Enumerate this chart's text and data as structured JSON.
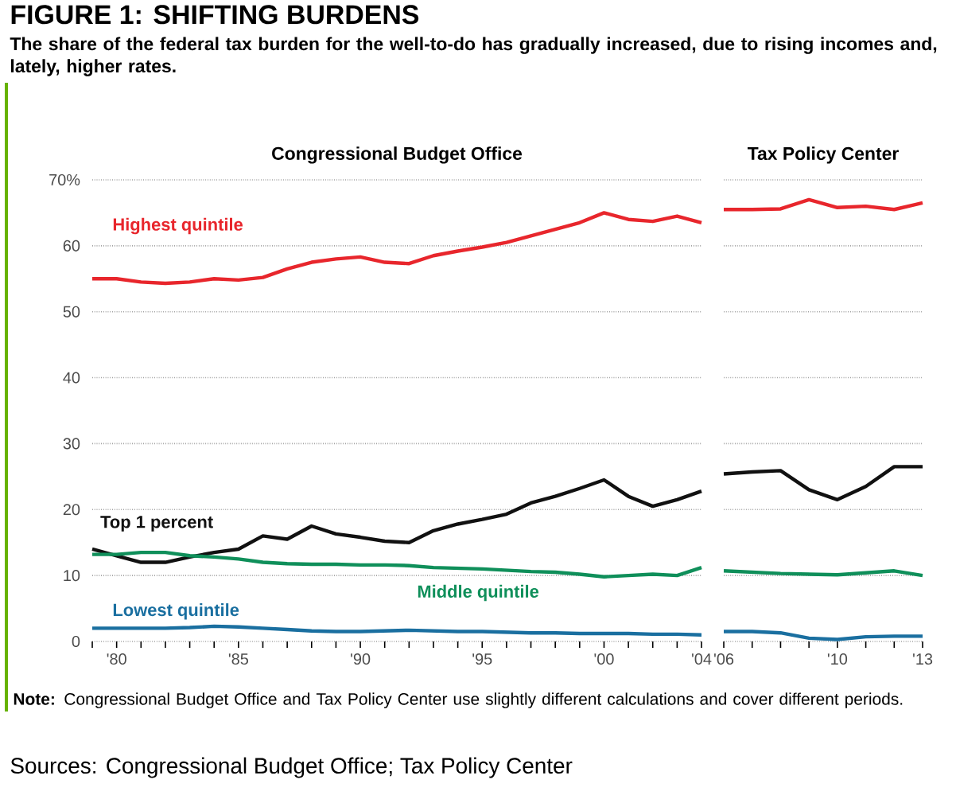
{
  "chart_data": [
    {
      "type": "line",
      "title": "FIGURE 1: SHIFTING BURDENS",
      "subtitle": "The share of the federal tax burden for the well-to-do has gradually increased, due to rising incomes and, lately, higher rates.",
      "annotations": [
        "Congressional Budget Office",
        "**Note:** Congressional Budget Office and Tax Policy Center use slightly different calculations and cover different periods.",
        "Sources: Congressional Budget Office; Tax Policy Center"
      ],
      "x": [
        1979,
        1980,
        1981,
        1982,
        1983,
        1984,
        1985,
        1986,
        1987,
        1988,
        1989,
        1990,
        1991,
        1992,
        1993,
        1994,
        1995,
        1996,
        1997,
        1998,
        1999,
        2000,
        2001,
        2002,
        2003,
        2004
      ],
      "series": [
        {
          "name": "Highest quintile",
          "color": "#e8262c",
          "values": [
            55,
            55,
            54.5,
            54.3,
            54.5,
            55,
            54.8,
            55.2,
            56.5,
            57.5,
            58,
            58.3,
            57.5,
            57.3,
            58.5,
            59.2,
            59.8,
            60.5,
            61.5,
            62.5,
            63.5,
            65,
            64,
            63.7,
            64.5,
            63.5
          ]
        },
        {
          "name": "Top 1 percent",
          "color": "#111111",
          "values": [
            14,
            13,
            12,
            12,
            12.8,
            13.5,
            14,
            16,
            15.5,
            17.5,
            16.3,
            15.8,
            15.2,
            15,
            16.8,
            17.8,
            18.5,
            19.3,
            21,
            22,
            23.2,
            24.5,
            22,
            20.5,
            21.5,
            22.8
          ]
        },
        {
          "name": "Middle quintile",
          "color": "#0f8f5a",
          "values": [
            13.2,
            13.2,
            13.5,
            13.5,
            13,
            12.8,
            12.5,
            12,
            11.8,
            11.7,
            11.7,
            11.6,
            11.6,
            11.5,
            11.2,
            11.1,
            11,
            10.8,
            10.6,
            10.5,
            10.2,
            9.8,
            10,
            10.2,
            10,
            11.2
          ]
        },
        {
          "name": "Lowest quintile",
          "color": "#1a6fa0",
          "values": [
            2,
            2,
            2,
            2,
            2.1,
            2.3,
            2.2,
            2,
            1.8,
            1.6,
            1.5,
            1.5,
            1.6,
            1.7,
            1.6,
            1.5,
            1.5,
            1.4,
            1.3,
            1.3,
            1.2,
            1.2,
            1.2,
            1.1,
            1.1,
            1
          ]
        }
      ],
      "xlim": [
        1979,
        2004
      ],
      "ylim": [
        0,
        70
      ],
      "xticks": [
        {
          "value": 1979,
          "label": null
        },
        {
          "value": 1980,
          "label": "'80"
        },
        {
          "value": 1981,
          "label": null
        },
        {
          "value": 1982,
          "label": null
        },
        {
          "value": 1983,
          "label": null
        },
        {
          "value": 1984,
          "label": null
        },
        {
          "value": 1985,
          "label": "'85"
        },
        {
          "value": 1986,
          "label": null
        },
        {
          "value": 1987,
          "label": null
        },
        {
          "value": 1988,
          "label": null
        },
        {
          "value": 1989,
          "label": null
        },
        {
          "value": 1990,
          "label": "'90"
        },
        {
          "value": 1991,
          "label": null
        },
        {
          "value": 1992,
          "label": null
        },
        {
          "value": 1993,
          "label": null
        },
        {
          "value": 1994,
          "label": null
        },
        {
          "value": 1995,
          "label": "'95"
        },
        {
          "value": 1996,
          "label": null
        },
        {
          "value": 1997,
          "label": null
        },
        {
          "value": 1998,
          "label": null
        },
        {
          "value": 1999,
          "label": null
        },
        {
          "value": 2000,
          "label": "'00"
        },
        {
          "value": 2001,
          "label": null
        },
        {
          "value": 2002,
          "label": null
        },
        {
          "value": 2003,
          "label": null
        },
        {
          "value": 2004,
          "label": "'04"
        }
      ],
      "yticks": [
        0,
        10,
        20,
        30,
        40,
        50,
        60,
        {
          "value": 70,
          "label": "70%"
        }
      ],
      "grid": "y",
      "legend": false,
      "marker": "none",
      "line_style": "solid"
    },
    {
      "type": "line",
      "title": "Tax Policy Center",
      "x": [
        2006,
        2007,
        2008,
        2009,
        2010,
        2011,
        2012,
        2013
      ],
      "series": [
        {
          "color": "#e8262c",
          "values": [
            65.5,
            65.5,
            65.6,
            67,
            65.8,
            66,
            65.5,
            66.5
          ]
        },
        {
          "color": "#111111",
          "values": [
            25.4,
            25.7,
            25.9,
            23,
            21.5,
            23.5,
            26.5,
            26.5
          ]
        },
        {
          "color": "#0f8f5a",
          "values": [
            10.7,
            10.5,
            10.3,
            10.2,
            10.1,
            10.4,
            10.7,
            10
          ]
        },
        {
          "color": "#1a6fa0",
          "values": [
            1.5,
            1.5,
            1.3,
            0.5,
            0.3,
            0.7,
            0.8,
            0.8
          ]
        }
      ],
      "xlim": [
        2006,
        2013
      ],
      "ylim": [
        0,
        70
      ],
      "xticks": [
        {
          "value": 2006,
          "label": "'06"
        },
        {
          "value": 2007,
          "label": null
        },
        {
          "value": 2008,
          "label": null
        },
        {
          "value": 2009,
          "label": null
        },
        {
          "value": 2010,
          "label": "'10"
        },
        {
          "value": 2011,
          "label": null
        },
        {
          "value": 2012,
          "label": null
        },
        {
          "value": 2013,
          "label": "'13"
        }
      ],
      "yticks": [
        0,
        10,
        20,
        30,
        40,
        50,
        60,
        70
      ],
      "tick_labels": "x",
      "grid": "y",
      "legend": false,
      "marker": "none",
      "line_style": "solid"
    }
  ]
}
